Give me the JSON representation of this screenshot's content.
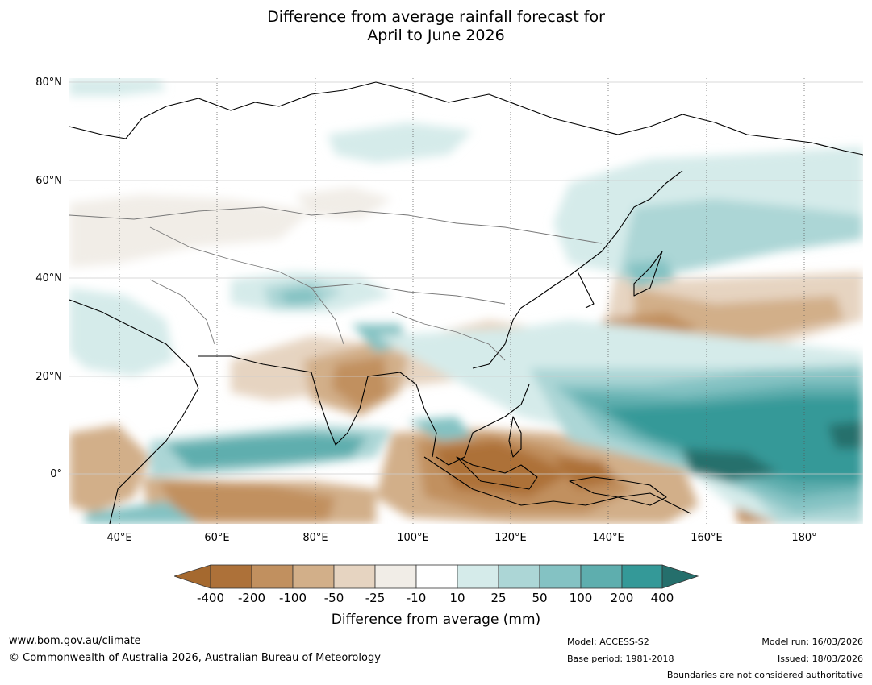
{
  "title": {
    "line1": "Difference from average rainfall forecast for",
    "line2": "April to June 2026"
  },
  "map": {
    "lat_labels": [
      "80°N",
      "60°N",
      "40°N",
      "20°N",
      "0°"
    ],
    "lon_labels": [
      "40°E",
      "60°E",
      "80°E",
      "100°E",
      "120°E",
      "140°E",
      "160°E",
      "180°"
    ]
  },
  "colorbar": {
    "title": "Difference from average (mm)",
    "labels": [
      "-400",
      "-200",
      "-100",
      "-50",
      "-25",
      "-10",
      "10",
      "25",
      "50",
      "100",
      "200",
      "400"
    ],
    "colors": [
      "#a5692f",
      "#ad7139",
      "#c1905f",
      "#d2af89",
      "#e6d4c1",
      "#f1ede7",
      "#ffffff",
      "#d5ebea",
      "#acd6d6",
      "#84c2c3",
      "#5eaeae",
      "#349998",
      "#256f6c"
    ]
  },
  "footer": {
    "url": "www.bom.gov.au/climate",
    "copyright": "© Commonwealth of Australia 2026, Australian Bureau of Meteorology",
    "model": "Model: ACCESS-S2",
    "base_period": "Base period: 1981-2018",
    "model_run": "Model run: 16/03/2026",
    "issued": "Issued: 18/03/2026",
    "disclaimer": "Boundaries are not considered authoritative"
  }
}
